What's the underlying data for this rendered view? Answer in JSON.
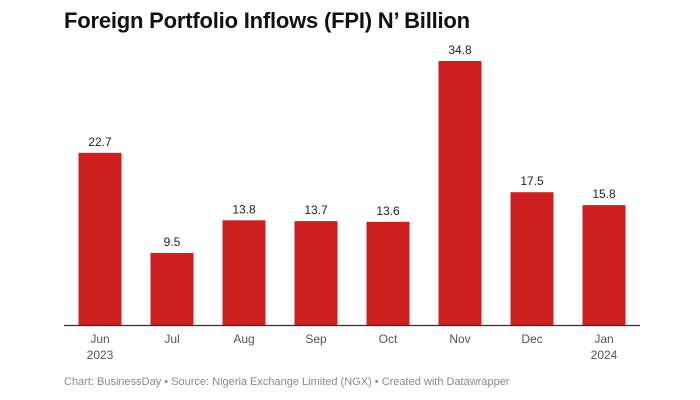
{
  "chart_data": {
    "type": "bar",
    "title": "Foreign Portfolio Inflows (FPI) N’ Billion",
    "xlabel": "",
    "ylabel": "",
    "ylim": [
      0,
      34.8
    ],
    "grid": false,
    "categories": [
      [
        "Jun",
        "2023"
      ],
      [
        "Jul"
      ],
      [
        "Aug"
      ],
      [
        "Sep"
      ],
      [
        "Oct"
      ],
      [
        "Nov"
      ],
      [
        "Dec"
      ],
      [
        "Jan",
        "2024"
      ]
    ],
    "values": [
      22.7,
      9.5,
      13.8,
      13.7,
      13.6,
      34.8,
      17.5,
      15.8
    ],
    "value_labels": [
      "22.7",
      "9.5",
      "13.8",
      "13.7",
      "13.6",
      "34.8",
      "17.5",
      "15.8"
    ],
    "bar_color": "#cc1f1f",
    "axis_color": "#333333",
    "label_color": "#222222",
    "tick_color": "#555555"
  },
  "footer": {
    "chart_by": "Chart: BusinessDay",
    "source": "Source: Nigeria Exchange Limited (NGX)",
    "created": "Created with Datawrapper",
    "separator": " • "
  }
}
